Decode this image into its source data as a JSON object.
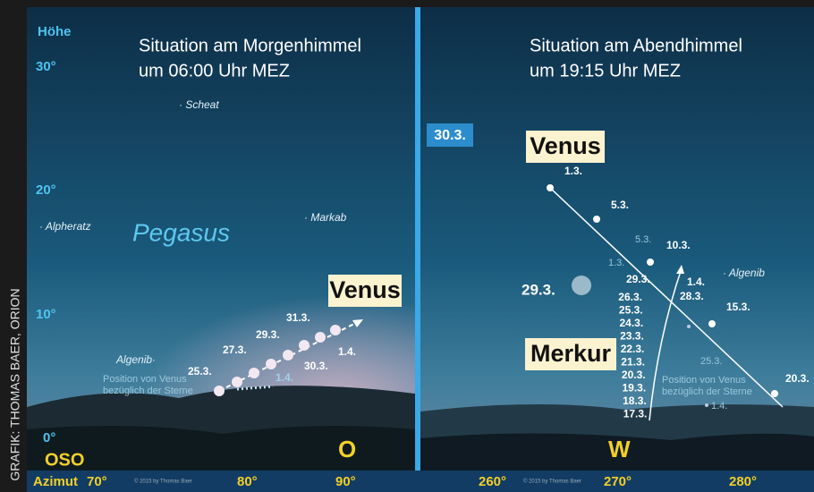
{
  "credit": "GRAFIK: THOMAS BAER, ORION",
  "morning": {
    "title": [
      "Situation am Morgenhimmel",
      "um 06:00 Uhr MEZ"
    ],
    "altitude_label": "Höhe",
    "altitudes": [
      "30°",
      "20°",
      "10°",
      "0°"
    ],
    "stars": [
      "· Scheat",
      "· Alpheratz",
      "· Markab",
      "Algenib·"
    ],
    "constellation": "Pegasus",
    "planet": "Venus",
    "dates": [
      "25.3.",
      "27.3.",
      "29.3.",
      "31.3.",
      "30.3.",
      "1.4.",
      "1.4."
    ],
    "note": [
      "Position von Venus",
      "bezüglich der Sterne"
    ],
    "directions": [
      "OSO",
      "O"
    ],
    "azimuth_label": "Azimut",
    "azimuths": [
      "70°",
      "80°",
      "90°"
    ],
    "copyright": "© 2015 by Thomas Baer"
  },
  "evening": {
    "title": [
      "Situation am Abendhimmel",
      "um 19:15 Uhr MEZ"
    ],
    "moons": [
      "30.3.",
      "29.3."
    ],
    "venus_label": "Venus",
    "venus_dates": [
      "1.3.",
      "5.3.",
      "10.3.",
      "15.3.",
      "20.3."
    ],
    "faint_dates": [
      "5.3.",
      "1.3.",
      "25.3.",
      "1.4."
    ],
    "venus_late_dates": [
      "29.3.",
      "1.4.",
      "28.3."
    ],
    "star": "· Algenib",
    "mercury_label": "Merkur",
    "mercury_dates": [
      "26.3.",
      "25.3.",
      "24.3.",
      "23.3.",
      "22.3.",
      "21.3.",
      "20.3.",
      "19.3.",
      "18.3.",
      "17.3."
    ],
    "note": [
      "Position von Venus",
      "bezüglich der Sterne"
    ],
    "direction": "W",
    "azimuths": [
      "260°",
      "270°",
      "280°"
    ],
    "copyright": "© 2015 by Thomas Baer"
  }
}
